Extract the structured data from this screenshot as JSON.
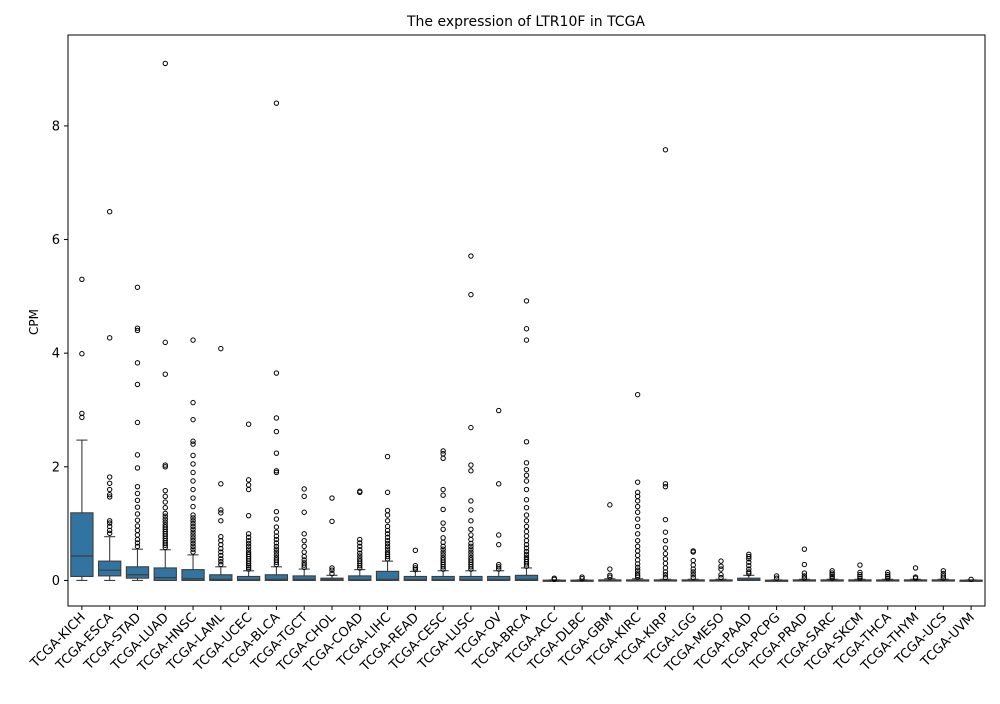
{
  "chart_data": {
    "type": "box",
    "title": "The expression of LTR10F in TCGA",
    "xlabel": "",
    "ylabel": "CPM",
    "ylim": [
      -0.45,
      9.6
    ],
    "yticks": [
      0,
      2,
      4,
      6,
      8
    ],
    "grid": false,
    "box_color": "#3274a1",
    "categories": [
      "TCGA-KICH",
      "TCGA-ESCA",
      "TCGA-STAD",
      "TCGA-LUAD",
      "TCGA-HNSC",
      "TCGA-LAML",
      "TCGA-UCEC",
      "TCGA-BLCA",
      "TCGA-TGCT",
      "TCGA-CHOL",
      "TCGA-COAD",
      "TCGA-LIHC",
      "TCGA-READ",
      "TCGA-CESC",
      "TCGA-LUSC",
      "TCGA-OV",
      "TCGA-BRCA",
      "TCGA-ACC",
      "TCGA-DLBC",
      "TCGA-GBM",
      "TCGA-KIRC",
      "TCGA-KIRP",
      "TCGA-LGG",
      "TCGA-MESO",
      "TCGA-PAAD",
      "TCGA-PCPG",
      "TCGA-PRAD",
      "TCGA-SARC",
      "TCGA-SKCM",
      "TCGA-THCA",
      "TCGA-THYM",
      "TCGA-UCS",
      "TCGA-UVM"
    ],
    "boxes": [
      {
        "whislo": 0,
        "q1": 0.07,
        "med": 0.43,
        "q3": 1.19,
        "whishi": 2.47,
        "fliers": [
          2.87,
          2.94,
          3.99,
          5.3
        ]
      },
      {
        "whislo": 0,
        "q1": 0.08,
        "med": 0.18,
        "q3": 0.34,
        "whishi": 0.77,
        "fliers": [
          0.83,
          0.88,
          0.95,
          1.01,
          1.05,
          1.47,
          1.51,
          1.6,
          1.71,
          1.82,
          4.27,
          6.49
        ]
      },
      {
        "whislo": 0,
        "q1": 0.04,
        "med": 0.1,
        "q3": 0.24,
        "whishi": 0.55,
        "fliers": [
          0.6,
          0.66,
          0.72,
          0.8,
          0.88,
          0.96,
          1.06,
          1.17,
          1.29,
          1.41,
          1.53,
          1.65,
          1.98,
          2.21,
          2.78,
          3.45,
          3.83,
          4.4,
          4.44,
          5.16
        ]
      },
      {
        "whislo": 0,
        "q1": 0,
        "med": 0.05,
        "q3": 0.22,
        "whishi": 0.54,
        "fliers": [
          0.58,
          0.62,
          0.66,
          0.7,
          0.74,
          0.78,
          0.82,
          0.86,
          0.9,
          0.94,
          0.98,
          1.03,
          1.08,
          1.13,
          1.18,
          1.28,
          1.38,
          1.48,
          1.58,
          2.0,
          2.03,
          3.63,
          4.19,
          9.1
        ]
      },
      {
        "whislo": 0,
        "q1": 0,
        "med": 0.03,
        "q3": 0.19,
        "whishi": 0.45,
        "fliers": [
          0.5,
          0.55,
          0.6,
          0.65,
          0.7,
          0.75,
          0.8,
          0.85,
          0.9,
          0.95,
          1.0,
          1.05,
          1.1,
          1.15,
          1.3,
          1.45,
          1.6,
          1.75,
          1.9,
          2.05,
          2.2,
          2.4,
          2.45,
          2.83,
          3.13,
          4.23
        ]
      },
      {
        "whislo": 0,
        "q1": 0,
        "med": 0.02,
        "q3": 0.1,
        "whishi": 0.24,
        "fliers": [
          0.28,
          0.33,
          0.38,
          0.44,
          0.5,
          0.56,
          0.63,
          0.7,
          0.77,
          1.05,
          1.19,
          1.24,
          1.7,
          4.08
        ]
      },
      {
        "whislo": 0,
        "q1": 0,
        "med": 0.01,
        "q3": 0.07,
        "whishi": 0.17,
        "fliers": [
          0.2,
          0.23,
          0.26,
          0.3,
          0.34,
          0.38,
          0.42,
          0.46,
          0.5,
          0.55,
          0.6,
          0.65,
          0.7,
          0.76,
          0.82,
          1.14,
          1.6,
          1.68,
          1.77,
          2.75
        ]
      },
      {
        "whislo": 0,
        "q1": 0,
        "med": 0.02,
        "q3": 0.1,
        "whishi": 0.24,
        "fliers": [
          0.28,
          0.32,
          0.36,
          0.4,
          0.45,
          0.5,
          0.55,
          0.6,
          0.66,
          0.72,
          0.78,
          0.85,
          0.94,
          1.08,
          1.21,
          1.9,
          1.93,
          2.24,
          2.62,
          2.86,
          3.65,
          8.4
        ]
      },
      {
        "whislo": 0,
        "q1": 0,
        "med": 0.02,
        "q3": 0.08,
        "whishi": 0.2,
        "fliers": [
          0.23,
          0.27,
          0.31,
          0.36,
          0.42,
          0.5,
          0.6,
          0.7,
          0.82,
          1.2,
          1.48,
          1.61
        ]
      },
      {
        "whislo": 0,
        "q1": 0,
        "med": 0.01,
        "q3": 0.04,
        "whishi": 0.09,
        "fliers": [
          0.12,
          0.18,
          0.22,
          1.04,
          1.45
        ]
      },
      {
        "whislo": 0,
        "q1": 0,
        "med": 0.01,
        "q3": 0.08,
        "whishi": 0.19,
        "fliers": [
          0.22,
          0.26,
          0.3,
          0.34,
          0.38,
          0.43,
          0.48,
          0.54,
          0.6,
          0.66,
          0.72,
          1.55,
          1.57
        ]
      },
      {
        "whislo": 0,
        "q1": 0,
        "med": 0.02,
        "q3": 0.16,
        "whishi": 0.34,
        "fliers": [
          0.38,
          0.42,
          0.46,
          0.5,
          0.55,
          0.6,
          0.65,
          0.7,
          0.76,
          0.82,
          0.88,
          0.95,
          1.05,
          1.15,
          1.23,
          1.55,
          2.18
        ]
      },
      {
        "whislo": 0,
        "q1": 0,
        "med": 0.01,
        "q3": 0.07,
        "whishi": 0.16,
        "fliers": [
          0.19,
          0.22,
          0.26,
          0.53
        ]
      },
      {
        "whislo": 0,
        "q1": 0,
        "med": 0.01,
        "q3": 0.07,
        "whishi": 0.17,
        "fliers": [
          0.2,
          0.24,
          0.28,
          0.32,
          0.36,
          0.4,
          0.45,
          0.5,
          0.55,
          0.6,
          0.67,
          0.75,
          0.9,
          1.01,
          1.25,
          1.5,
          1.6,
          2.15,
          2.23,
          2.28
        ]
      },
      {
        "whislo": 0,
        "q1": 0,
        "med": 0.01,
        "q3": 0.07,
        "whishi": 0.17,
        "fliers": [
          0.2,
          0.24,
          0.28,
          0.32,
          0.36,
          0.4,
          0.45,
          0.5,
          0.55,
          0.6,
          0.65,
          0.72,
          0.8,
          0.9,
          1.05,
          1.24,
          1.4,
          1.93,
          2.03,
          2.69,
          5.03,
          5.71
        ]
      },
      {
        "whislo": 0,
        "q1": 0,
        "med": 0.01,
        "q3": 0.07,
        "whishi": 0.17,
        "fliers": [
          0.2,
          0.24,
          0.28,
          0.63,
          0.8,
          1.7,
          2.99
        ]
      },
      {
        "whislo": 0,
        "q1": 0,
        "med": 0.02,
        "q3": 0.09,
        "whishi": 0.22,
        "fliers": [
          0.25,
          0.29,
          0.33,
          0.37,
          0.41,
          0.46,
          0.51,
          0.57,
          0.63,
          0.7,
          0.78,
          0.86,
          0.95,
          1.05,
          1.15,
          1.28,
          1.42,
          1.6,
          1.75,
          1.85,
          1.95,
          2.07,
          2.44,
          4.23,
          4.43,
          4.92
        ]
      },
      {
        "whislo": 0,
        "q1": 0,
        "med": 0,
        "q3": 0.005,
        "whishi": 0.01,
        "fliers": [
          0.02,
          0.04
        ]
      },
      {
        "whislo": 0,
        "q1": 0,
        "med": 0,
        "q3": 0.005,
        "whishi": 0.01,
        "fliers": [
          0.03,
          0.06
        ]
      },
      {
        "whislo": 0,
        "q1": 0,
        "med": 0,
        "q3": 0.01,
        "whishi": 0.03,
        "fliers": [
          0.06,
          0.09,
          0.2,
          1.33
        ]
      },
      {
        "whislo": 0,
        "q1": 0,
        "med": 0,
        "q3": 0.01,
        "whishi": 0.03,
        "fliers": [
          0.06,
          0.09,
          0.13,
          0.18,
          0.23,
          0.29,
          0.36,
          0.44,
          0.52,
          0.6,
          0.7,
          0.82,
          0.95,
          1.08,
          1.2,
          1.3,
          1.4,
          1.48,
          1.55,
          1.73,
          3.27
        ]
      },
      {
        "whislo": 0,
        "q1": 0,
        "med": 0,
        "q3": 0.01,
        "whishi": 0.02,
        "fliers": [
          0.05,
          0.1,
          0.15,
          0.22,
          0.3,
          0.38,
          0.47,
          0.57,
          0.7,
          0.85,
          1.07,
          1.65,
          1.7,
          7.58
        ]
      },
      {
        "whislo": 0,
        "q1": 0,
        "med": 0,
        "q3": 0.01,
        "whishi": 0.02,
        "fliers": [
          0.05,
          0.1,
          0.15,
          0.2,
          0.27,
          0.35,
          0.5,
          0.52
        ]
      },
      {
        "whislo": 0,
        "q1": 0,
        "med": 0,
        "q3": 0.01,
        "whishi": 0.02,
        "fliers": [
          0.05,
          0.1,
          0.2,
          0.25,
          0.34
        ]
      },
      {
        "whislo": 0,
        "q1": 0,
        "med": 0.01,
        "q3": 0.04,
        "whishi": 0.09,
        "fliers": [
          0.12,
          0.15,
          0.2,
          0.26,
          0.32,
          0.38,
          0.42,
          0.46
        ]
      },
      {
        "whislo": 0,
        "q1": 0,
        "med": 0,
        "q3": 0.005,
        "whishi": 0.01,
        "fliers": [
          0.04,
          0.08
        ]
      },
      {
        "whislo": 0,
        "q1": 0,
        "med": 0,
        "q3": 0.01,
        "whishi": 0.02,
        "fliers": [
          0.04,
          0.08,
          0.13,
          0.28,
          0.55
        ]
      },
      {
        "whislo": 0,
        "q1": 0,
        "med": 0,
        "q3": 0.01,
        "whishi": 0.02,
        "fliers": [
          0.04,
          0.07,
          0.1,
          0.13,
          0.17
        ]
      },
      {
        "whislo": 0,
        "q1": 0,
        "med": 0,
        "q3": 0.01,
        "whishi": 0.02,
        "fliers": [
          0.04,
          0.07,
          0.1,
          0.14,
          0.27
        ]
      },
      {
        "whislo": 0,
        "q1": 0,
        "med": 0,
        "q3": 0.01,
        "whishi": 0.02,
        "fliers": [
          0.04,
          0.07,
          0.1,
          0.14
        ]
      },
      {
        "whislo": 0,
        "q1": 0,
        "med": 0,
        "q3": 0.01,
        "whishi": 0.02,
        "fliers": [
          0.04,
          0.06,
          0.22
        ]
      },
      {
        "whislo": 0,
        "q1": 0,
        "med": 0,
        "q3": 0.01,
        "whishi": 0.02,
        "fliers": [
          0.04,
          0.08,
          0.12,
          0.17
        ]
      },
      {
        "whislo": 0,
        "q1": 0,
        "med": 0,
        "q3": 0.005,
        "whishi": 0.01,
        "fliers": [
          0.02
        ]
      }
    ]
  }
}
